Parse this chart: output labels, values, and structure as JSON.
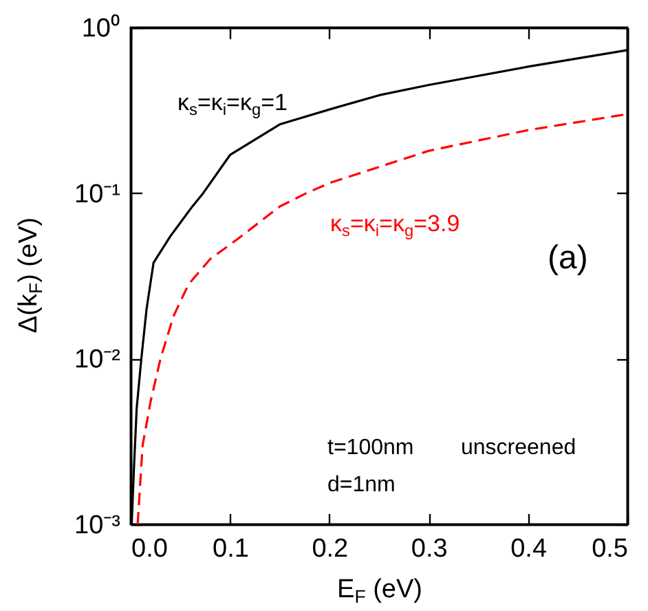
{
  "chart_data": {
    "type": "line",
    "xlabel": "E$_{F}$ (eV)",
    "ylabel": "Δ(k$_{F}$) (eV)",
    "annotations": [
      "(a)",
      "t=100nm",
      "unscreened",
      "d=1nm"
    ],
    "xlim": [
      0,
      0.5
    ],
    "xticks": [
      {
        "value": 0,
        "label": "0.0"
      },
      0.1,
      0.2,
      0.3,
      0.4,
      0.5
    ],
    "ylim": [
      0.001,
      1
    ],
    "yticks": [
      {
        "value": 0.001,
        "label": "10⁻³"
      },
      {
        "value": 0.01,
        "label": "10⁻²"
      },
      {
        "value": 0.1,
        "label": "10⁻¹"
      },
      {
        "value": 1,
        "label": "10⁰"
      }
    ],
    "log": "y",
    "grid": false,
    "series": [
      {
        "name": "κ$_{s}$=κ$_{i}$=κ$_{g}$=1",
        "color": "#000000",
        "line_style": "solid",
        "x": [
          0.001,
          0.003,
          0.006,
          0.0107,
          0.016,
          0.023,
          0.04,
          0.062,
          0.073,
          0.1,
          0.15,
          0.2,
          0.25,
          0.3,
          0.4,
          0.5
        ],
        "values": [
          0.001,
          0.002,
          0.005,
          0.01,
          0.02,
          0.038,
          0.055,
          0.083,
          0.1,
          0.17,
          0.26,
          0.32,
          0.39,
          0.45,
          0.58,
          0.73
        ]
      },
      {
        "name": "κ$_{s}$=κ$_{i}$=κ$_{g}$=3.9",
        "color": "#ff0000",
        "line_style": "dashed",
        "x": [
          0.007,
          0.012,
          0.02,
          0.03,
          0.043,
          0.058,
          0.08,
          0.108,
          0.15,
          0.177,
          0.2,
          0.3,
          0.4,
          0.5
        ],
        "values": [
          0.001,
          0.003,
          0.0055,
          0.01,
          0.018,
          0.028,
          0.04,
          0.053,
          0.083,
          0.1,
          0.115,
          0.18,
          0.24,
          0.3
        ]
      }
    ]
  }
}
